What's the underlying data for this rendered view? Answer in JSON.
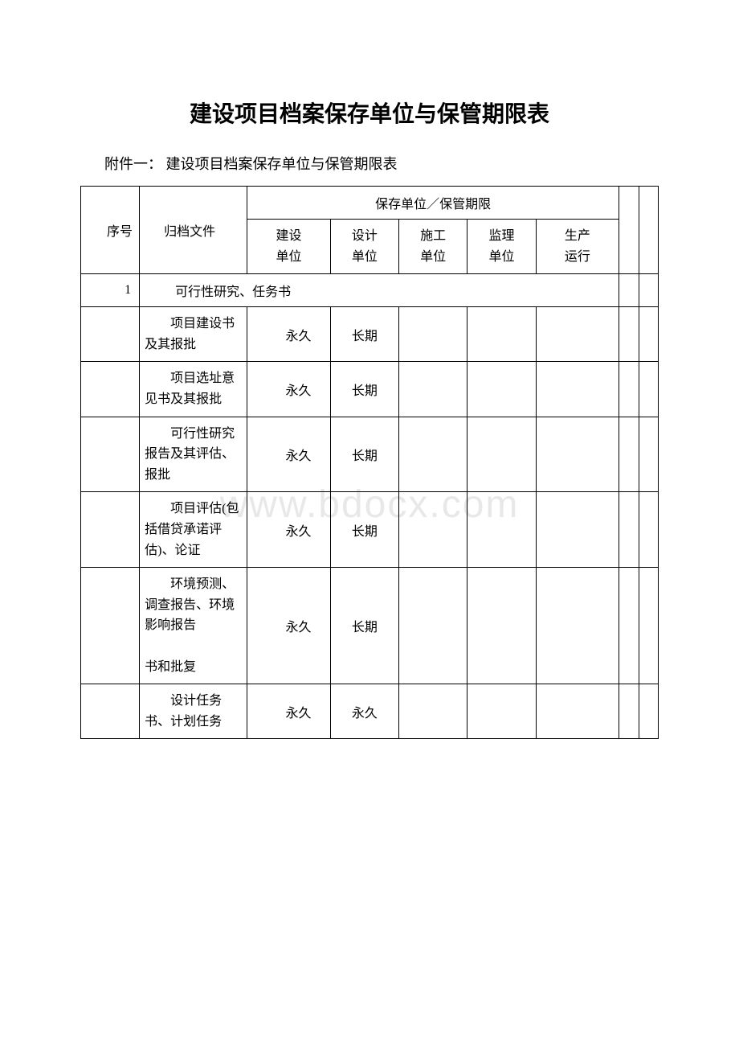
{
  "title": "建设项目档案保存单位与保管期限表",
  "subtitle": "附件一： 建设项目档案保存单位与保管期限表",
  "watermark": "www.bdocx.com",
  "table": {
    "header": {
      "seq": "序号",
      "file": "归档文件",
      "span_label": "保存单位／保管期限",
      "cols": [
        "建设\n单位",
        "设计\n单位",
        "施工\n单位",
        "监理\n单位",
        "生产\n运行"
      ]
    },
    "section": {
      "num": "1",
      "label": "可行性研究、任务书"
    },
    "rows": [
      {
        "file": "项目建设书及其报批",
        "c1": "永久",
        "c2": "长期",
        "c3": "",
        "c4": "",
        "c5": ""
      },
      {
        "file": "项目选址意见书及其报批",
        "c1": "永久",
        "c2": "长期",
        "c3": "",
        "c4": "",
        "c5": ""
      },
      {
        "file": "可行性研究报告及其评估、报批",
        "c1": "永久",
        "c2": "长期",
        "c3": "",
        "c4": "",
        "c5": ""
      },
      {
        "file": "项目评估(包括借贷承诺评估)、论证",
        "c1": "永久",
        "c2": "长期",
        "c3": "",
        "c4": "",
        "c5": ""
      },
      {
        "file": "环境预测、调查报告、环境影响报告\n\n书和批复",
        "c1": "永久",
        "c2": "长期",
        "c3": "",
        "c4": "",
        "c5": ""
      },
      {
        "file": "设计任务书、计划任务",
        "c1": "永久",
        "c2": "永久",
        "c3": "",
        "c4": "",
        "c5": ""
      }
    ]
  },
  "colors": {
    "text": "#000000",
    "background": "#ffffff",
    "border": "#000000",
    "watermark": "#e8e8e8"
  }
}
